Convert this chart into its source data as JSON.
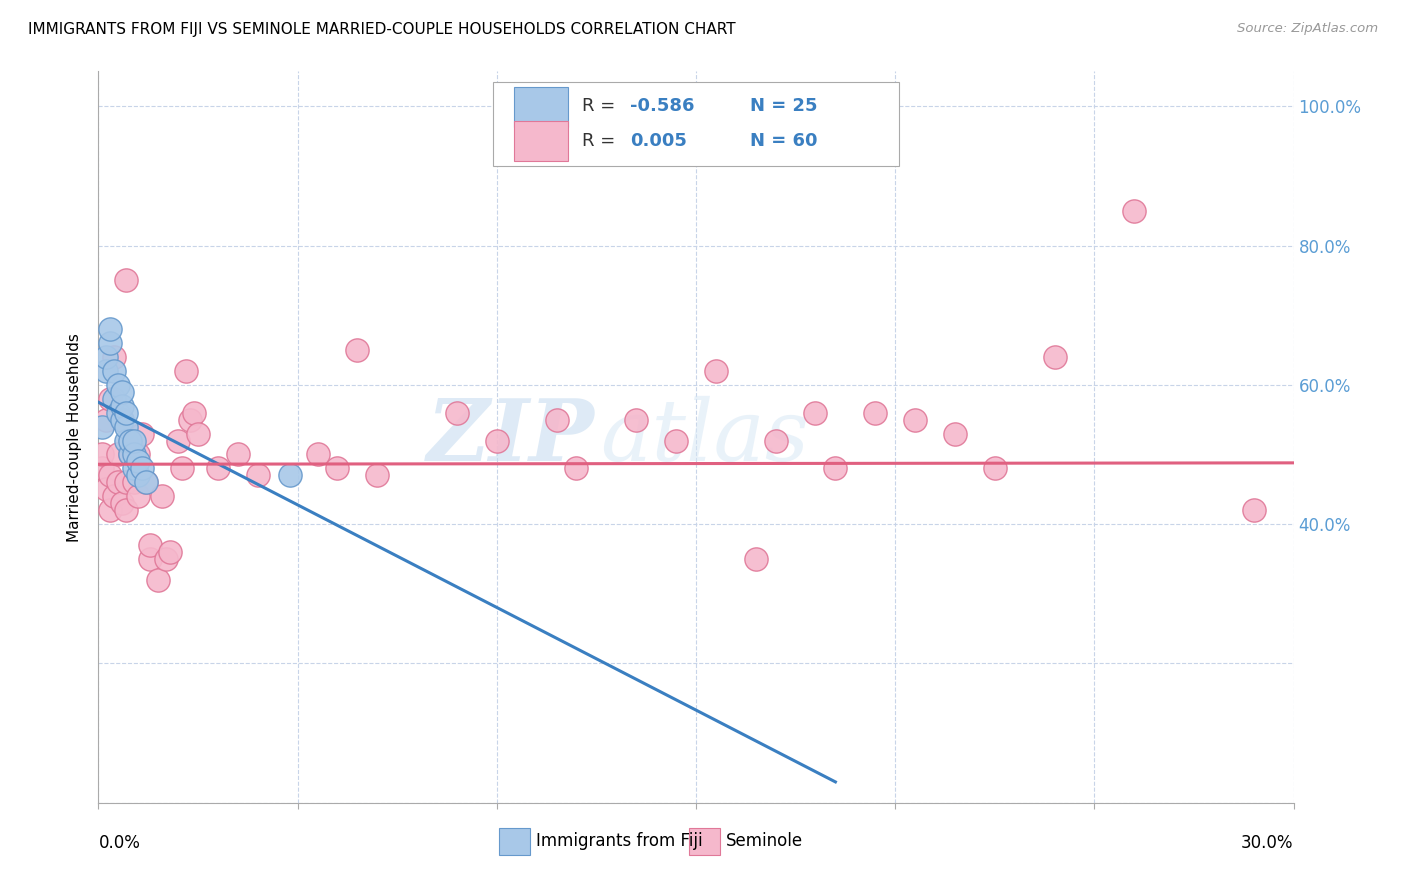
{
  "title": "IMMIGRANTS FROM FIJI VS SEMINOLE MARRIED-COUPLE HOUSEHOLDS CORRELATION CHART",
  "source": "Source: ZipAtlas.com",
  "ylabel": "Married-couple Households",
  "x_range": [
    0.0,
    0.3
  ],
  "y_range": [
    0.0,
    1.05
  ],
  "watermark": "ZIPatlas",
  "fiji_color": "#a8c8e8",
  "fiji_edge_color": "#6699cc",
  "seminole_color": "#f5b8cc",
  "seminole_edge_color": "#e07898",
  "fiji_R": -0.586,
  "fiji_N": 25,
  "seminole_R": 0.005,
  "seminole_N": 60,
  "legend_fiji_label": "Immigrants from Fiji",
  "legend_seminole_label": "Seminole",
  "fiji_scatter_x": [
    0.001,
    0.002,
    0.002,
    0.003,
    0.003,
    0.004,
    0.004,
    0.005,
    0.005,
    0.006,
    0.006,
    0.006,
    0.007,
    0.007,
    0.007,
    0.008,
    0.008,
    0.009,
    0.009,
    0.009,
    0.01,
    0.01,
    0.011,
    0.012,
    0.048
  ],
  "fiji_scatter_y": [
    0.54,
    0.62,
    0.64,
    0.66,
    0.68,
    0.62,
    0.58,
    0.56,
    0.6,
    0.55,
    0.57,
    0.59,
    0.52,
    0.54,
    0.56,
    0.5,
    0.52,
    0.48,
    0.5,
    0.52,
    0.47,
    0.49,
    0.48,
    0.46,
    0.47
  ],
  "fiji_line_x": [
    0.0,
    0.185
  ],
  "fiji_line_y": [
    0.575,
    0.03
  ],
  "seminole_scatter_x": [
    0.001,
    0.001,
    0.002,
    0.002,
    0.003,
    0.003,
    0.003,
    0.004,
    0.004,
    0.005,
    0.005,
    0.006,
    0.006,
    0.007,
    0.007,
    0.007,
    0.008,
    0.008,
    0.009,
    0.01,
    0.01,
    0.011,
    0.012,
    0.013,
    0.013,
    0.015,
    0.016,
    0.017,
    0.018,
    0.02,
    0.021,
    0.022,
    0.023,
    0.024,
    0.025,
    0.03,
    0.035,
    0.04,
    0.055,
    0.06,
    0.065,
    0.07,
    0.09,
    0.1,
    0.115,
    0.12,
    0.135,
    0.145,
    0.155,
    0.165,
    0.17,
    0.18,
    0.185,
    0.195,
    0.205,
    0.215,
    0.225,
    0.24,
    0.26,
    0.29
  ],
  "seminole_scatter_y": [
    0.48,
    0.5,
    0.45,
    0.55,
    0.42,
    0.47,
    0.58,
    0.44,
    0.64,
    0.46,
    0.5,
    0.43,
    0.55,
    0.42,
    0.46,
    0.75,
    0.5,
    0.52,
    0.46,
    0.44,
    0.5,
    0.53,
    0.46,
    0.35,
    0.37,
    0.32,
    0.44,
    0.35,
    0.36,
    0.52,
    0.48,
    0.62,
    0.55,
    0.56,
    0.53,
    0.48,
    0.5,
    0.47,
    0.5,
    0.48,
    0.65,
    0.47,
    0.56,
    0.52,
    0.55,
    0.48,
    0.55,
    0.52,
    0.62,
    0.35,
    0.52,
    0.56,
    0.48,
    0.56,
    0.55,
    0.53,
    0.48,
    0.64,
    0.85,
    0.42
  ],
  "seminole_line_x": [
    0.0,
    0.3
  ],
  "seminole_line_y": [
    0.486,
    0.488
  ],
  "y_grid_positions": [
    0.0,
    0.2,
    0.4,
    0.6,
    0.8,
    1.0
  ],
  "x_grid_positions": [
    0.0,
    0.05,
    0.1,
    0.15,
    0.2,
    0.25,
    0.3
  ],
  "right_ytick_labels": [
    "",
    "",
    "40.0%",
    "60.0%",
    "80.0%",
    "100.0%"
  ],
  "right_ytick_color": "#5b9dd4"
}
